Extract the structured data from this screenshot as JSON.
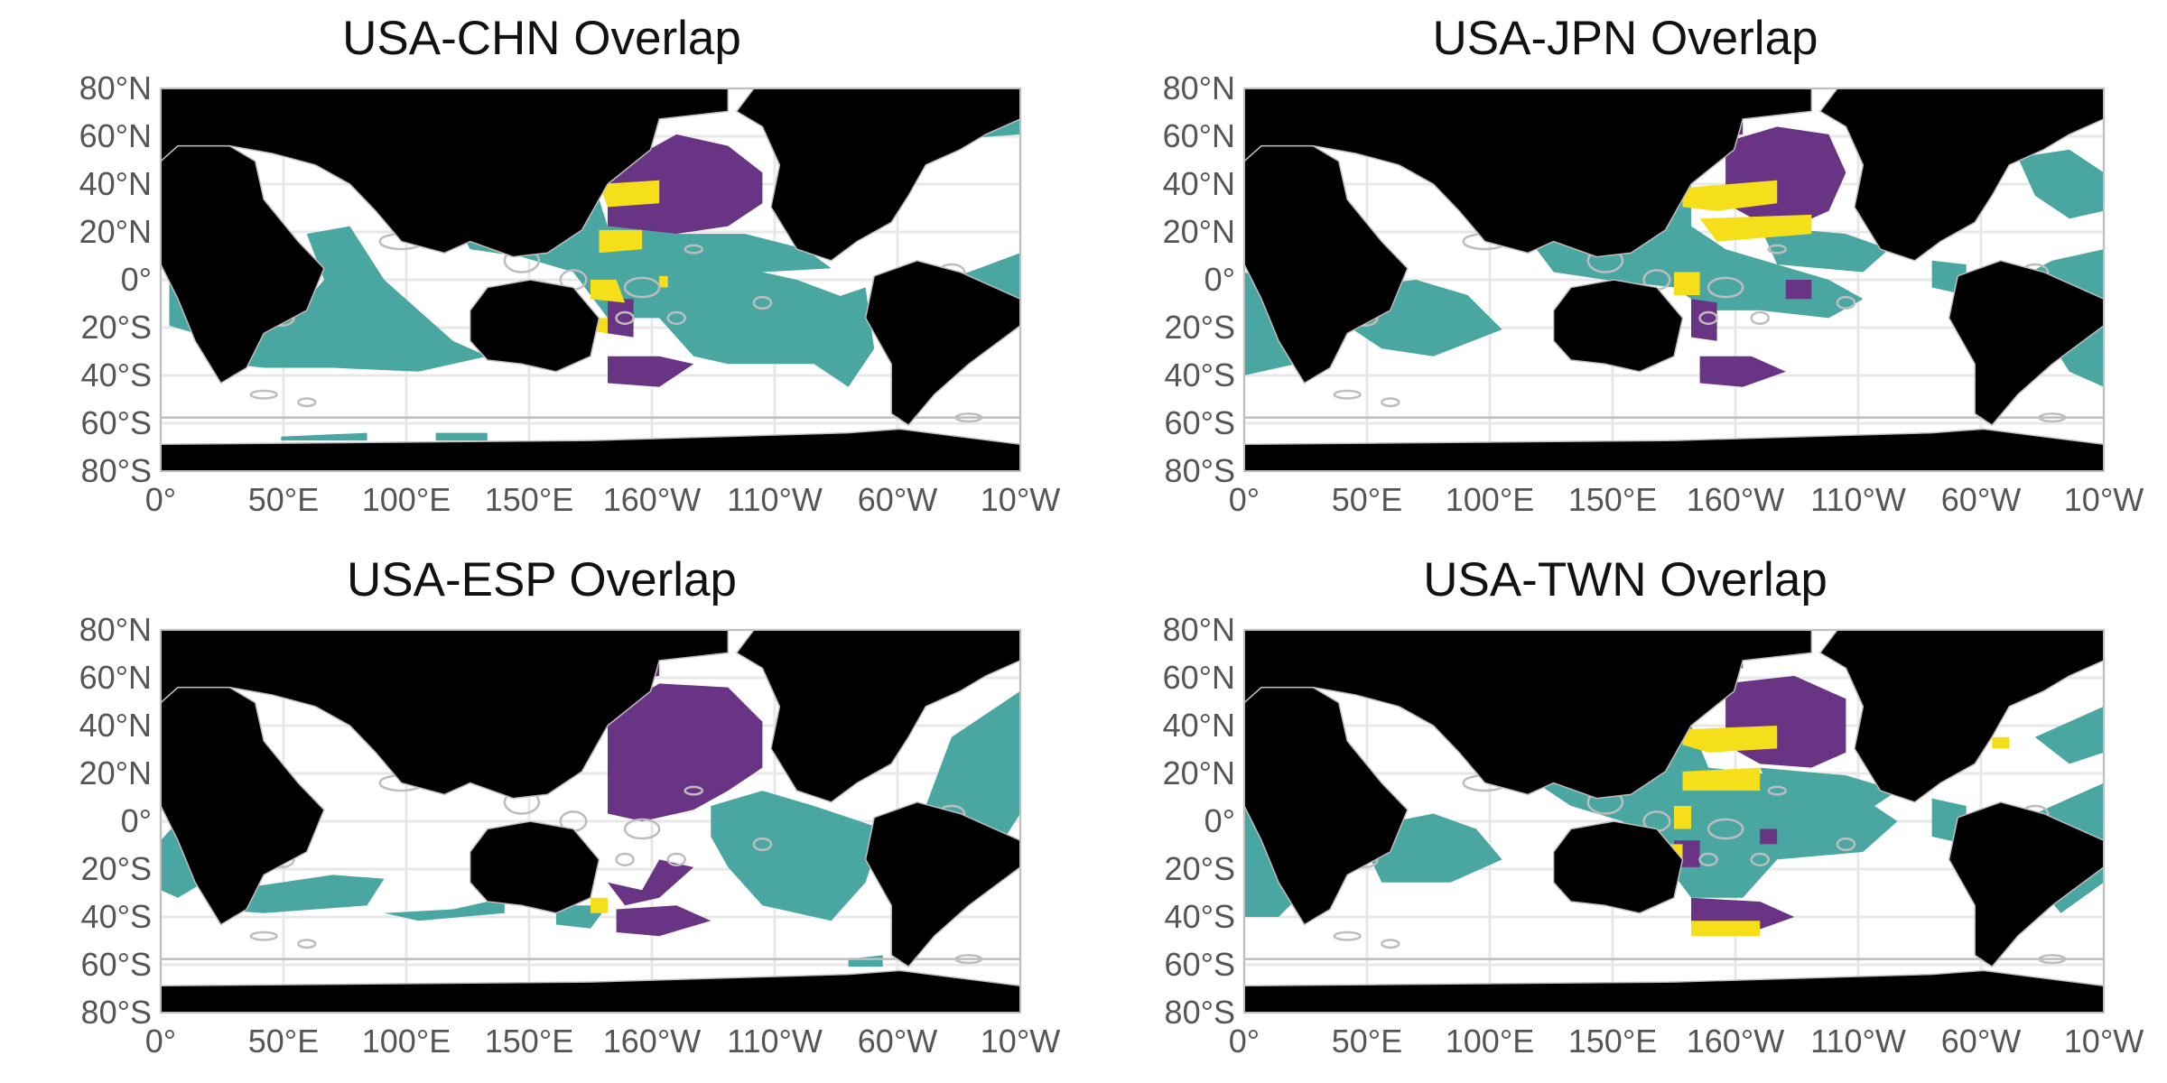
{
  "panels": [
    {
      "id": "chn",
      "title": "USA-CHN Overlap"
    },
    {
      "id": "jpn",
      "title": "USA-JPN Overlap"
    },
    {
      "id": "esp",
      "title": "USA-ESP Overlap"
    },
    {
      "id": "twn",
      "title": "USA-TWN Overlap"
    }
  ],
  "axes": {
    "lat_ticks": [
      "80°N",
      "60°N",
      "40°N",
      "20°N",
      "0°",
      "20°S",
      "40°S",
      "60°S",
      "80°S"
    ],
    "lon_ticks": [
      "0°",
      "50°E",
      "100°E",
      "150°E",
      "160°W",
      "110°W",
      "60°W",
      "10°W"
    ]
  },
  "colors": {
    "land": "#000000",
    "teal": "#4aa6a0",
    "purple": "#6a3484",
    "yellow": "#f5df1a",
    "eez": "#bdbdbd",
    "grid": "#e8e8e8",
    "frame": "#bfbfbf"
  }
}
